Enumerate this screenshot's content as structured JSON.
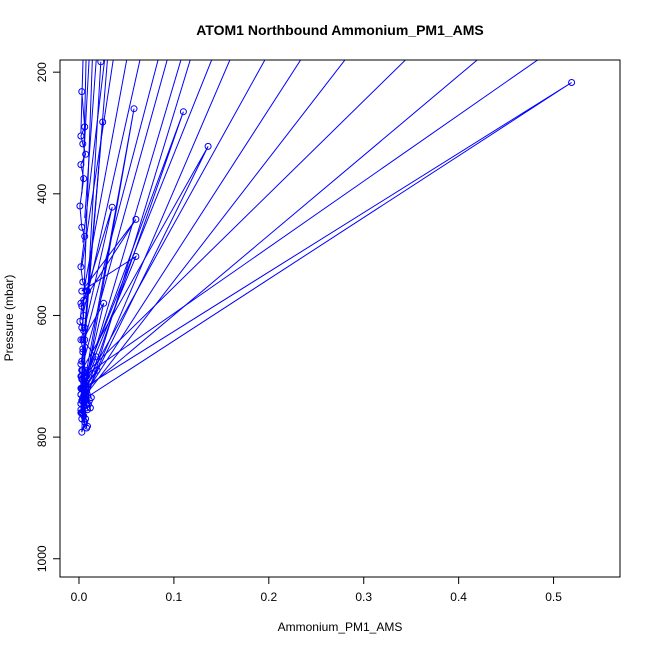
{
  "chart_data": {
    "type": "line",
    "title": "ATOM1 Northbound Ammonium_PM1_AMS",
    "xlabel": "Ammonium_PM1_AMS",
    "ylabel": "Pressure (mbar)",
    "xlim": [
      -0.02,
      0.57
    ],
    "ylim": [
      1030,
      180
    ],
    "y_axis_reversed": true,
    "x_ticks": [
      0.0,
      0.1,
      0.2,
      0.3,
      0.4,
      0.5
    ],
    "x_tick_labels": [
      "0.0",
      "0.1",
      "0.2",
      "0.3",
      "0.4",
      "0.5"
    ],
    "y_ticks": [
      200,
      400,
      600,
      800,
      1000
    ],
    "y_tick_labels": [
      "200",
      "400",
      "600",
      "800",
      "1000"
    ],
    "grid": false,
    "legend": "none",
    "series_color": "#0000ff",
    "marker": "open-circle",
    "series": [
      {
        "x": [
          0.003,
          0.006,
          0.002,
          0.004,
          0.007,
          0.002,
          0.005,
          0.001,
          0.003,
          0.006,
          0.002,
          0.004,
          0.008,
          0.003,
          0.001,
          0.005,
          0.002,
          0.004,
          0.003,
          0.007,
          0.002,
          0.005,
          0.003,
          0.006,
          0.004,
          0.002,
          0.008,
          0.003,
          0.005,
          0.002,
          0.006,
          0.004,
          0.003,
          0.007,
          0.002,
          0.005,
          0.003,
          0.008,
          0.004,
          0.006,
          0.002,
          0.005,
          0.003,
          0.007,
          0.004,
          0.002,
          0.006,
          0.003,
          0.009,
          0.002,
          0.005,
          0.003,
          0.006,
          0.004,
          0.002
        ],
        "y": [
          232,
          290,
          305,
          318,
          335,
          352,
          375,
          420,
          455,
          470,
          520,
          545,
          560,
          585,
          610,
          625,
          640,
          655,
          675,
          690,
          700,
          710,
          720,
          728,
          735,
          745,
          752,
          760,
          700,
          720,
          740,
          760,
          690,
          710,
          730,
          750,
          770,
          785,
          705,
          725,
          745,
          765,
          700,
          715,
          735,
          755,
          775,
          792,
          560,
          580,
          600,
          620,
          640,
          660,
          680
        ]
      },
      {
        "x": [
          0.023,
          0.002,
          0.058,
          0.007,
          0.11,
          0.004,
          0.136,
          0.003,
          0.025,
          0.006,
          0.035,
          0.005,
          0.06,
          0.003,
          0.06,
          0.008,
          0.026,
          0.004,
          0.018,
          0.005,
          0.013,
          0.006,
          0.011,
          0.004,
          0.012,
          0.003,
          0.01,
          0.005,
          0.009,
          0.004,
          0.007,
          0.003,
          0.519,
          0.004,
          0.019,
          0.002,
          0.009
        ],
        "y": [
          183,
          760,
          260,
          700,
          265,
          740,
          322,
          690,
          282,
          620,
          422,
          575,
          442,
          560,
          503,
          700,
          580,
          640,
          668,
          720,
          735,
          700,
          740,
          690,
          752,
          705,
          746,
          715,
          755,
          722,
          770,
          740,
          217,
          720,
          690,
          730,
          782
        ]
      }
    ],
    "offscale_segments": [
      {
        "from_x": 0.125,
        "from_y": 140,
        "to_x": 0.004,
        "to_y": 760
      },
      {
        "from_x": 0.15,
        "from_y": 140,
        "to_x": 0.006,
        "to_y": 700
      },
      {
        "from_x": 0.17,
        "from_y": 140,
        "to_x": 0.005,
        "to_y": 740
      },
      {
        "from_x": 0.21,
        "from_y": 140,
        "to_x": 0.004,
        "to_y": 720
      },
      {
        "from_x": 0.25,
        "from_y": 140,
        "to_x": 0.006,
        "to_y": 730
      },
      {
        "from_x": 0.3,
        "from_y": 140,
        "to_x": 0.005,
        "to_y": 735
      },
      {
        "from_x": 0.37,
        "from_y": 140,
        "to_x": 0.004,
        "to_y": 700
      },
      {
        "from_x": 0.45,
        "from_y": 140,
        "to_x": 0.008,
        "to_y": 720
      },
      {
        "from_x": 0.52,
        "from_y": 140,
        "to_x": 0.005,
        "to_y": 700
      },
      {
        "from_x": 0.09,
        "from_y": 140,
        "to_x": 0.006,
        "to_y": 640
      },
      {
        "from_x": 0.07,
        "from_y": 140,
        "to_x": 0.004,
        "to_y": 600
      },
      {
        "from_x": 0.055,
        "from_y": 140,
        "to_x": 0.005,
        "to_y": 560
      },
      {
        "from_x": 0.04,
        "from_y": 140,
        "to_x": 0.003,
        "to_y": 520
      },
      {
        "from_x": 0.03,
        "from_y": 140,
        "to_x": 0.004,
        "to_y": 480
      },
      {
        "from_x": 0.02,
        "from_y": 140,
        "to_x": 0.006,
        "to_y": 440
      },
      {
        "from_x": 0.012,
        "from_y": 140,
        "to_x": 0.003,
        "to_y": 400
      },
      {
        "from_x": 0.008,
        "from_y": 140,
        "to_x": 0.005,
        "to_y": 350
      },
      {
        "from_x": 0.005,
        "from_y": 140,
        "to_x": 0.002,
        "to_y": 300
      },
      {
        "from_x": 0.1,
        "from_y": 140,
        "to_x": 0.004,
        "to_y": 680
      },
      {
        "from_x": 0.115,
        "from_y": 140,
        "to_x": 0.007,
        "to_y": 710
      },
      {
        "from_x": 0.032,
        "from_y": 140,
        "to_x": 0.005,
        "to_y": 660
      },
      {
        "from_x": 0.015,
        "from_y": 140,
        "to_x": 0.004,
        "to_y": 620
      }
    ]
  }
}
